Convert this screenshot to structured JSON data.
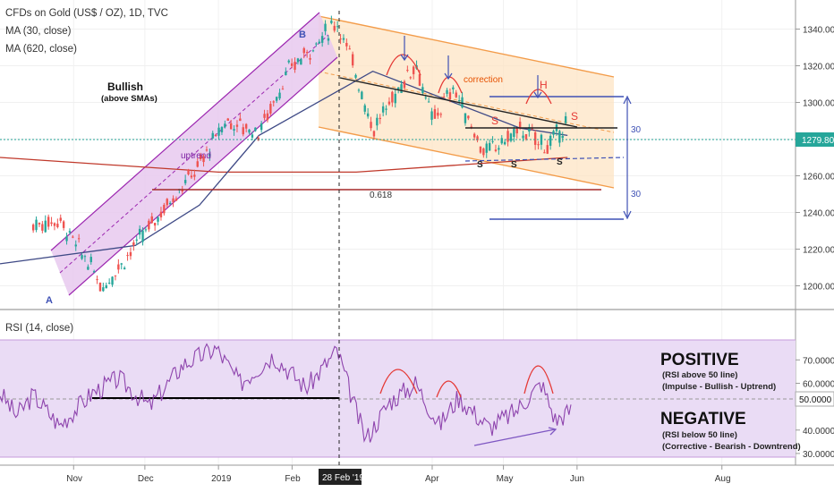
{
  "chart_data": [
    {
      "type": "candlestick",
      "title": "CFDs on Gold (US$ / OZ), 1D, TVC",
      "indicators": [
        "MA (30, close)",
        "MA (620, close)"
      ],
      "ylim": [
        1190,
        1350
      ],
      "y_ticks": [
        "1340.00",
        "1320.00",
        "1300.00",
        "1280.00",
        "1260.00",
        "1240.00",
        "1220.00",
        "1200.00"
      ],
      "last_price": "1279.80",
      "x_ticks": [
        "Nov",
        "Dec",
        "2019",
        "Feb",
        "Apr",
        "May",
        "Jun",
        "Aug"
      ],
      "cursor_date": "28 Feb '19",
      "points": [
        {
          "date": "2018-10-15",
          "value": 1233
        },
        {
          "date": "2018-10-26",
          "value": 1236
        },
        {
          "date": "2018-11-09",
          "value": 1209
        },
        {
          "date": "2018-11-13",
          "value": 1199
        },
        {
          "date": "2018-11-27",
          "value": 1222
        },
        {
          "date": "2018-12-10",
          "value": 1244
        },
        {
          "date": "2018-12-24",
          "value": 1266
        },
        {
          "date": "2019-01-04",
          "value": 1290
        },
        {
          "date": "2019-01-18",
          "value": 1284
        },
        {
          "date": "2019-01-31",
          "value": 1318
        },
        {
          "date": "2019-02-20",
          "value": 1344
        },
        {
          "date": "2019-02-28",
          "value": 1316
        },
        {
          "date": "2019-03-07",
          "value": 1285
        },
        {
          "date": "2019-03-25",
          "value": 1322
        },
        {
          "date": "2019-04-01",
          "value": 1290
        },
        {
          "date": "2019-04-10",
          "value": 1308
        },
        {
          "date": "2019-04-23",
          "value": 1272
        },
        {
          "date": "2019-05-08",
          "value": 1285
        },
        {
          "date": "2019-05-20",
          "value": 1276
        },
        {
          "date": "2019-05-28",
          "value": 1290
        }
      ],
      "ma30": [
        {
          "date": "2018-10-01",
          "value": 1212
        },
        {
          "date": "2018-11-27",
          "value": 1222
        },
        {
          "date": "2018-12-24",
          "value": 1244
        },
        {
          "date": "2019-01-18",
          "value": 1282
        },
        {
          "date": "2019-02-20",
          "value": 1306
        },
        {
          "date": "2019-03-07",
          "value": 1317
        },
        {
          "date": "2019-04-10",
          "value": 1300
        },
        {
          "date": "2019-05-08",
          "value": 1286
        },
        {
          "date": "2019-05-28",
          "value": 1282
        }
      ],
      "ma620": [
        {
          "date": "2018-10-01",
          "value": 1270
        },
        {
          "date": "2019-01-01",
          "value": 1262
        },
        {
          "date": "2019-02-28",
          "value": 1262
        },
        {
          "date": "2019-05-28",
          "value": 1270
        }
      ],
      "annotations": {
        "bullish": "Bullish",
        "above_smas": "(above SMAs)",
        "uptrend": "uptrend",
        "correction": "correction",
        "fib": "0.618",
        "range": "30",
        "label_a": "A",
        "label_b": "B",
        "label_h": "H",
        "label_s": "S",
        "colors": {
          "channel_up": "#9c27b0",
          "channel_down": "#f57c00",
          "ma30": "#3f4a86",
          "ma620": "#c0392b",
          "price": "#26a69a"
        }
      }
    },
    {
      "type": "line",
      "title": "RSI (14, close)",
      "ylim": [
        25,
        90
      ],
      "y_ticks": [
        "70.0000",
        "60.0000",
        "50.0000",
        "40.0000",
        "30.0000"
      ],
      "current": "50.0000",
      "band": [
        30,
        70
      ],
      "points": [
        {
          "date": "2018-10-01",
          "value": 56
        },
        {
          "date": "2018-10-08",
          "value": 46
        },
        {
          "date": "2018-10-15",
          "value": 55
        },
        {
          "date": "2018-10-26",
          "value": 42
        },
        {
          "date": "2018-11-09",
          "value": 56
        },
        {
          "date": "2018-11-20",
          "value": 62
        },
        {
          "date": "2018-12-03",
          "value": 50
        },
        {
          "date": "2018-12-17",
          "value": 68
        },
        {
          "date": "2018-12-31",
          "value": 75
        },
        {
          "date": "2019-01-10",
          "value": 60
        },
        {
          "date": "2019-01-24",
          "value": 72
        },
        {
          "date": "2019-02-07",
          "value": 58
        },
        {
          "date": "2019-02-20",
          "value": 74
        },
        {
          "date": "2019-02-28",
          "value": 48
        },
        {
          "date": "2019-03-04",
          "value": 36
        },
        {
          "date": "2019-03-14",
          "value": 52
        },
        {
          "date": "2019-03-25",
          "value": 60
        },
        {
          "date": "2019-04-04",
          "value": 42
        },
        {
          "date": "2019-04-12",
          "value": 54
        },
        {
          "date": "2019-04-25",
          "value": 41
        },
        {
          "date": "2019-05-06",
          "value": 48
        },
        {
          "date": "2019-05-17",
          "value": 60
        },
        {
          "date": "2019-05-23",
          "value": 44
        },
        {
          "date": "2019-05-30",
          "value": 49
        }
      ],
      "annotations": {
        "positive": "POSITIVE",
        "positive_sub1": "(RSI above 50 line)",
        "positive_sub2": "(Impulse - Bullish - Uptrend)",
        "negative": "NEGATIVE",
        "negative_sub1": "(RSI below 50 line)",
        "negative_sub2": "(Corrective - Bearish - Downtrend)"
      }
    }
  ]
}
